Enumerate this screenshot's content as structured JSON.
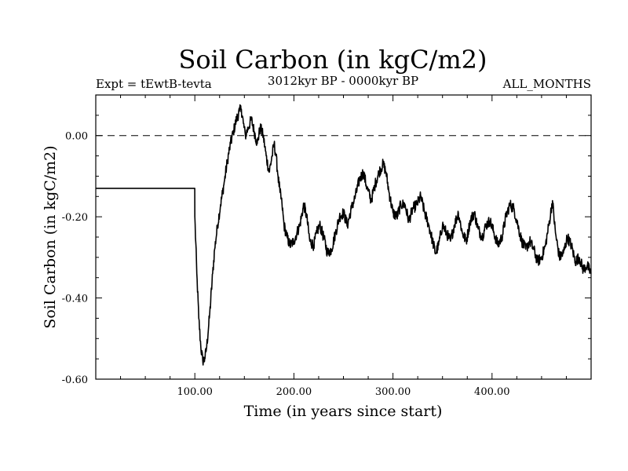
{
  "chart_data": {
    "type": "line",
    "title": "Soil Carbon (in kgC/m2)",
    "subtitle_left": "Expt = tEwtB-tevta",
    "subtitle_center": "3012kyr BP - 0000kyr BP",
    "subtitle_right": "ALL_MONTHS",
    "xlabel": "Time (in years since start)",
    "ylabel": "Soil Carbon (in kgC/m2)",
    "xlim": [
      0,
      500
    ],
    "ylim": [
      -0.6,
      0.1
    ],
    "x_ticks": [
      100,
      200,
      300,
      400
    ],
    "x_tick_labels": [
      "100.00",
      "200.00",
      "300.00",
      "400.00"
    ],
    "y_ticks": [
      0.0,
      -0.2,
      -0.4,
      -0.6
    ],
    "y_tick_labels": [
      "0.00",
      "-0.20",
      "-0.40",
      "-0.60"
    ],
    "reference_line": {
      "y": 0.0,
      "style": "dashed"
    },
    "series": [
      {
        "name": "Soil Carbon",
        "x": [
          0,
          99.9,
          100,
          102,
          104,
          106,
          108,
          110,
          112,
          115,
          118,
          120,
          123,
          126,
          130,
          133,
          136,
          139,
          142,
          145,
          147,
          149,
          151,
          154,
          157,
          160,
          163,
          166,
          169,
          172,
          175,
          178,
          180,
          182,
          184,
          186,
          188,
          190,
          193,
          196,
          200,
          203,
          206,
          210,
          213,
          216,
          220,
          223,
          226,
          230,
          234,
          238,
          242,
          246,
          250,
          254,
          258,
          262,
          266,
          270,
          274,
          278,
          282,
          286,
          290,
          293,
          296,
          300,
          304,
          308,
          312,
          316,
          320,
          324,
          328,
          332,
          336,
          340,
          343,
          346,
          350,
          354,
          358,
          362,
          366,
          370,
          374,
          378,
          382,
          386,
          390,
          394,
          398,
          402,
          406,
          410,
          414,
          418,
          422,
          426,
          430,
          434,
          438,
          442,
          446,
          450,
          454,
          458,
          461,
          464,
          468,
          472,
          476,
          480,
          484,
          488,
          492,
          496,
          500
        ],
        "y": [
          -0.13,
          -0.13,
          -0.2,
          -0.34,
          -0.45,
          -0.52,
          -0.555,
          -0.55,
          -0.52,
          -0.44,
          -0.34,
          -0.28,
          -0.22,
          -0.17,
          -0.11,
          -0.06,
          -0.02,
          0.01,
          0.04,
          0.06,
          0.065,
          0.03,
          0.0,
          0.02,
          0.04,
          0.01,
          -0.02,
          0.02,
          0.0,
          -0.05,
          -0.09,
          -0.05,
          -0.02,
          -0.05,
          -0.1,
          -0.14,
          -0.17,
          -0.22,
          -0.25,
          -0.27,
          -0.26,
          -0.24,
          -0.22,
          -0.17,
          -0.2,
          -0.26,
          -0.27,
          -0.24,
          -0.22,
          -0.25,
          -0.29,
          -0.28,
          -0.24,
          -0.2,
          -0.19,
          -0.22,
          -0.18,
          -0.15,
          -0.11,
          -0.09,
          -0.13,
          -0.16,
          -0.12,
          -0.09,
          -0.07,
          -0.09,
          -0.14,
          -0.19,
          -0.2,
          -0.17,
          -0.17,
          -0.21,
          -0.18,
          -0.17,
          -0.15,
          -0.19,
          -0.22,
          -0.26,
          -0.29,
          -0.27,
          -0.22,
          -0.24,
          -0.26,
          -0.22,
          -0.19,
          -0.24,
          -0.26,
          -0.21,
          -0.19,
          -0.23,
          -0.25,
          -0.22,
          -0.21,
          -0.24,
          -0.27,
          -0.25,
          -0.2,
          -0.17,
          -0.18,
          -0.22,
          -0.26,
          -0.28,
          -0.26,
          -0.28,
          -0.31,
          -0.3,
          -0.27,
          -0.21,
          -0.16,
          -0.24,
          -0.3,
          -0.29,
          -0.25,
          -0.27,
          -0.31,
          -0.3,
          -0.33,
          -0.32,
          -0.34
        ]
      }
    ]
  }
}
